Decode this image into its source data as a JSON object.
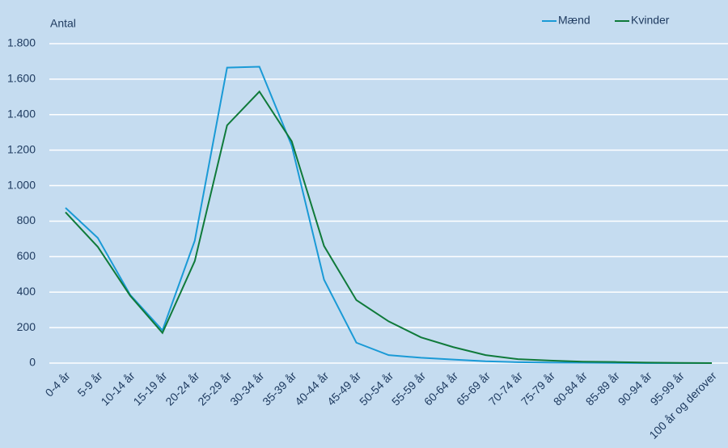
{
  "chart_data": {
    "type": "line",
    "y_label": "Antal",
    "categories": [
      "0-4 år",
      "5-9 år",
      "10-14 år",
      "15-19 år",
      "20-24 år",
      "25-29 år",
      "30-34 år",
      "35-39 år",
      "40-44 år",
      "45-49 år",
      "50-54 år",
      "55-59 år",
      "60-64 år",
      "65-69 år",
      "70-74 år",
      "75-79 år",
      "80-84 år",
      "85-89 år",
      "90-94 år",
      "95-99 år",
      "100 år og derover"
    ],
    "series": [
      {
        "name": "Mænd",
        "color": "#1a9ad6",
        "values": [
          875,
          705,
          385,
          185,
          690,
          1665,
          1670,
          1225,
          470,
          115,
          45,
          30,
          20,
          10,
          5,
          3,
          2,
          1,
          0,
          0,
          0
        ]
      },
      {
        "name": "Kvinder",
        "color": "#0f7a3a",
        "values": [
          850,
          655,
          380,
          170,
          575,
          1340,
          1530,
          1250,
          660,
          355,
          235,
          145,
          90,
          45,
          22,
          14,
          8,
          6,
          3,
          1,
          0
        ]
      }
    ],
    "ylim": [
      0,
      1800
    ],
    "yticks": [
      0,
      200,
      400,
      600,
      800,
      {
        "value": 1000,
        "label": "1.000"
      },
      {
        "value": 1200,
        "label": "1.200"
      },
      {
        "value": 1400,
        "label": "1.400"
      },
      {
        "value": 1600,
        "label": "1.600"
      },
      {
        "value": 1800,
        "label": "1.800"
      }
    ],
    "grid": true,
    "legend": "top-right"
  }
}
